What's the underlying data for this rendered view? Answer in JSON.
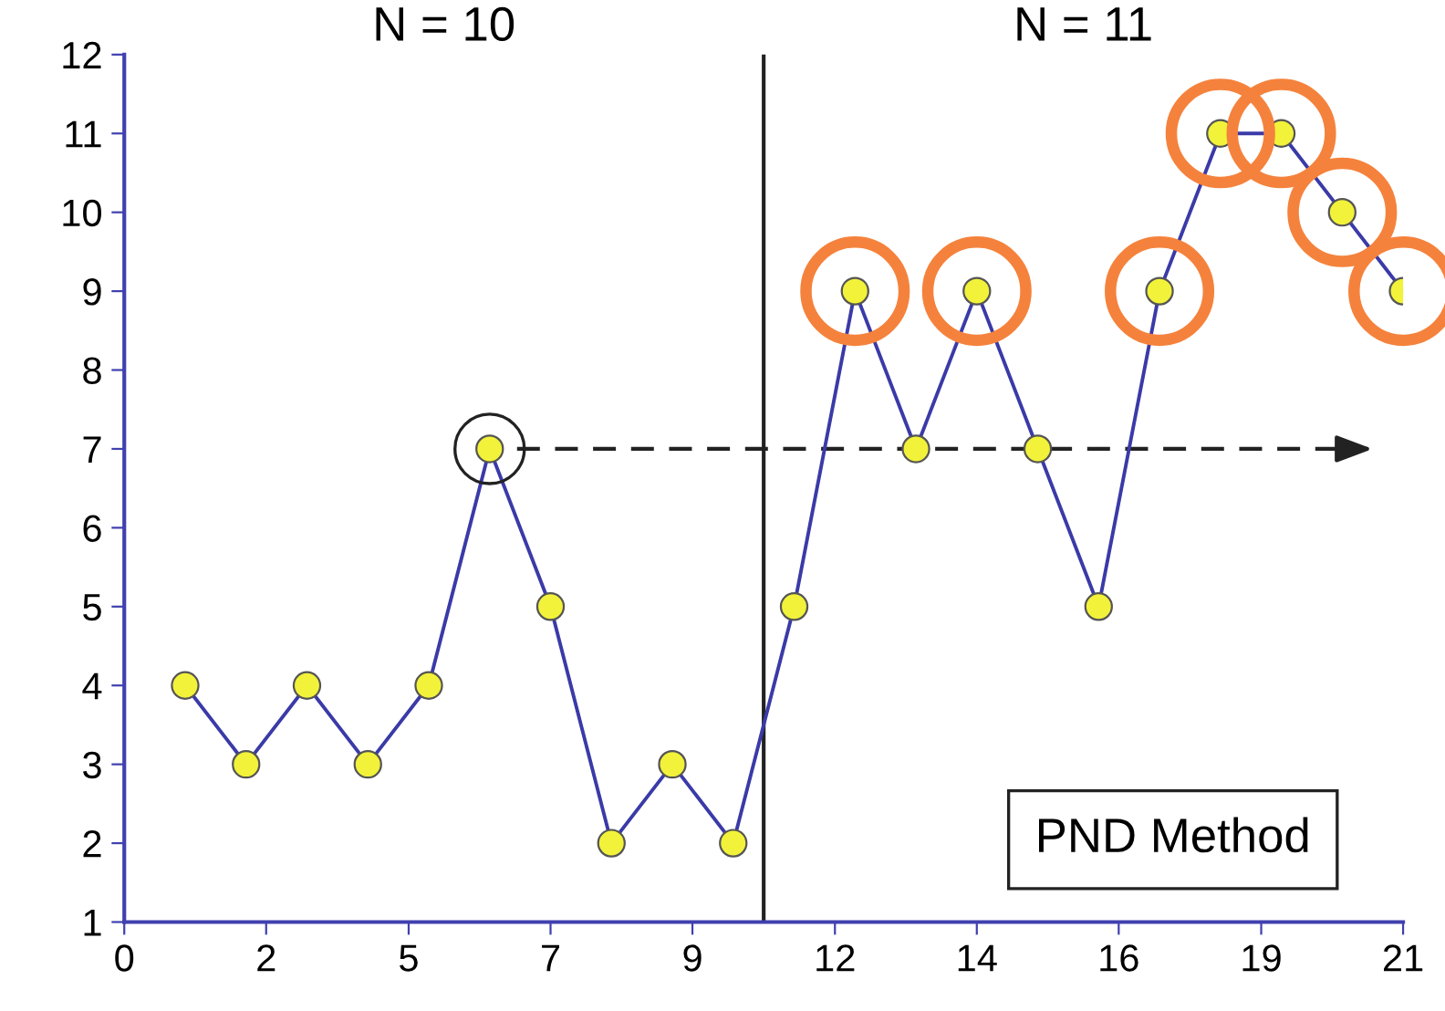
{
  "chart_data": {
    "type": "line",
    "x": [
      1,
      2,
      3,
      4,
      5,
      6,
      7,
      8,
      9,
      10,
      11,
      12,
      13,
      14,
      15,
      16,
      17,
      18,
      19,
      20,
      21
    ],
    "series": [
      {
        "color": "#3a3aa8",
        "colors": [
          "#f2f23a",
          "#f2f23a",
          "#f2f23a",
          "#f2f23a",
          "#f2f23a",
          "#f2f23a",
          "#f2f23a",
          "#f2f23a",
          "#f2f23a",
          "#f2f23a",
          "#f2f23a",
          "#f2f23a",
          "#f2f23a",
          "#f2f23a",
          "#f2f23a",
          "#f2f23a",
          "#f2f23a",
          "#f2f23a",
          "#f2f23a",
          "#f2f23a",
          "#f2f23a"
        ],
        "values": [
          4,
          3,
          4,
          3,
          4,
          7,
          5,
          2,
          3,
          2,
          5,
          9,
          7,
          9,
          7,
          5,
          9,
          11,
          11,
          10,
          9
        ]
      }
    ],
    "xlim": [
      0,
      21
    ],
    "xticks": [
      0,
      {
        "value": 2.33,
        "label": "2"
      },
      {
        "value": 4.67,
        "label": "5"
      },
      7,
      {
        "value": 9.33,
        "label": "9"
      },
      {
        "value": 11.67,
        "label": "12"
      },
      14,
      {
        "value": 16.33,
        "label": "16"
      },
      {
        "value": 18.67,
        "label": "19"
      },
      21
    ],
    "ylim": [
      1,
      12
    ],
    "yticks": [
      1,
      2,
      3,
      4,
      5,
      6,
      7,
      8,
      9,
      10,
      11,
      12
    ],
    "marker": "circle",
    "line_style": "solid",
    "grid": false,
    "ref_lines": [
      {
        "axis": "x",
        "value": 10.5,
        "color": "#222222",
        "line_style": "solid"
      },
      {
        "axis": "y",
        "value": 7,
        "color": "#222222",
        "line_style": "dashed"
      }
    ],
    "annotations": [
      "N = 10",
      "N = 11",
      "PND Method"
    ]
  }
}
